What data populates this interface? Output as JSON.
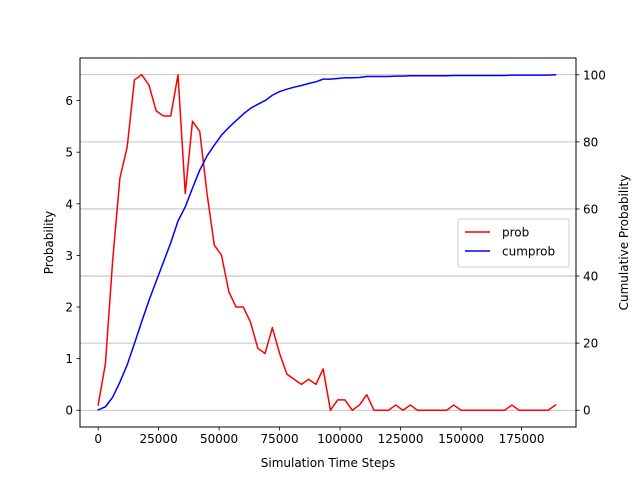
{
  "chart_data": {
    "type": "line",
    "title": "",
    "xlabel": "Simulation Time Steps",
    "ylabel": "Probability",
    "y2label": "Cumulative Probability",
    "xlim": [
      -7500,
      197500
    ],
    "ylim": [
      -0.325,
      6.825
    ],
    "y2lim": [
      -5,
      105
    ],
    "x_ticks": [
      0,
      25000,
      50000,
      75000,
      100000,
      125000,
      150000,
      175000
    ],
    "x_tick_labels": [
      "0",
      "25000",
      "50000",
      "75000",
      "100000",
      "125000",
      "150000",
      "175000"
    ],
    "y_ticks": [
      0,
      1,
      2,
      3,
      4,
      5,
      6
    ],
    "y_tick_labels": [
      "0",
      "1",
      "2",
      "3",
      "4",
      "5",
      "6"
    ],
    "y2_ticks": [
      0,
      20,
      40,
      60,
      80,
      100
    ],
    "y2_tick_labels": [
      "0",
      "20",
      "40",
      "60",
      "80",
      "100"
    ],
    "grid": "horizontal lines at right-axis ticks",
    "legend_position": "center-right",
    "x": [
      0,
      3000,
      6000,
      9000,
      12000,
      15000,
      18000,
      21000,
      24000,
      27000,
      30000,
      33000,
      36000,
      39000,
      42000,
      45000,
      48000,
      51000,
      54000,
      57000,
      60000,
      63000,
      66000,
      69000,
      72000,
      75000,
      78000,
      81000,
      84000,
      87000,
      90000,
      93000,
      96000,
      99000,
      102000,
      105000,
      108000,
      111000,
      114000,
      117000,
      120000,
      123000,
      126000,
      129000,
      132000,
      135000,
      138000,
      141000,
      144000,
      147000,
      150000,
      153000,
      156000,
      159000,
      162000,
      165000,
      168000,
      171000,
      174000,
      177000,
      180000,
      183000,
      186000,
      189000
    ],
    "series": [
      {
        "name": "prob",
        "axis": "left",
        "color": "#ff0000",
        "values": [
          0.1,
          0.9,
          2.9,
          4.5,
          5.1,
          6.4,
          6.5,
          6.3,
          5.8,
          5.7,
          5.7,
          6.5,
          4.2,
          5.6,
          5.4,
          4.2,
          3.2,
          3.0,
          2.3,
          2.0,
          2.0,
          1.7,
          1.2,
          1.1,
          1.6,
          1.1,
          0.7,
          0.6,
          0.5,
          0.6,
          0.5,
          0.8,
          0.0,
          0.2,
          0.2,
          0.0,
          0.1,
          0.3,
          0.0,
          0.0,
          0.0,
          0.1,
          0.0,
          0.1,
          0.0,
          0.0,
          0.0,
          0.0,
          0.0,
          0.1,
          0.0,
          0.0,
          0.0,
          0.0,
          0.0,
          0.0,
          0.0,
          0.1,
          0.0,
          0.0,
          0.0,
          0.0,
          0.0,
          0.1
        ]
      },
      {
        "name": "cumprob",
        "axis": "right",
        "color": "#0000ff",
        "values": [
          0.1,
          1.0,
          3.9,
          8.4,
          13.5,
          19.9,
          26.4,
          32.7,
          38.5,
          44.2,
          49.9,
          56.4,
          60.6,
          66.2,
          71.6,
          75.8,
          79.0,
          82.0,
          84.3,
          86.3,
          88.3,
          90.0,
          91.2,
          92.3,
          93.9,
          95.0,
          95.7,
          96.3,
          96.8,
          97.4,
          97.9,
          98.7,
          98.7,
          98.9,
          99.1,
          99.1,
          99.2,
          99.5,
          99.5,
          99.5,
          99.5,
          99.6,
          99.6,
          99.7,
          99.7,
          99.7,
          99.7,
          99.7,
          99.7,
          99.8,
          99.8,
          99.8,
          99.8,
          99.8,
          99.8,
          99.8,
          99.8,
          99.9,
          99.9,
          99.9,
          99.9,
          99.9,
          99.9,
          100.0
        ]
      }
    ]
  }
}
